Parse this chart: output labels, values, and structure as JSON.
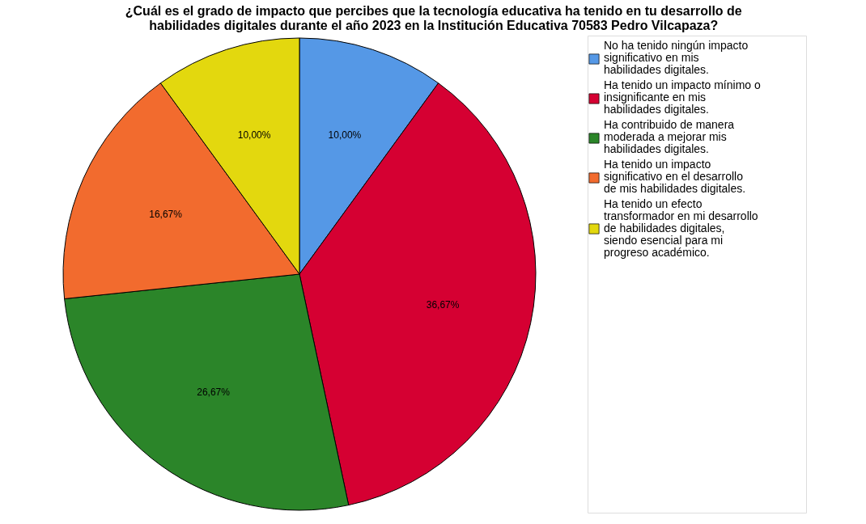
{
  "chart_data": {
    "type": "pie",
    "title": [
      "¿Cuál es el grado de impacto que percibes que la tecnología educativa ha tenido en tu desarrollo de",
      "habilidades digitales durante el año 2023 en la Institución Educativa 70583 Pedro Vilcapaza?"
    ],
    "categories": [
      "No ha tenido ningún impacto significativo en mis habilidades digitales.",
      "Ha tenido un impacto mínimo o insignificante en mis habilidades digitales.",
      "Ha contribuido de manera moderada a mejorar mis habilidades digitales.",
      "Ha tenido un impacto significativo en el desarrollo de mis habilidades digitales.",
      "Ha tenido un efecto transformador en mi desarrollo de habilidades digitales, siendo esencial para mi progreso académico."
    ],
    "values": [
      10.0,
      36.67,
      26.67,
      16.67,
      10.0
    ],
    "value_labels": [
      "10,00%",
      "36,67%",
      "26,67%",
      "16,67%",
      "10,00%"
    ],
    "colors": [
      "#5598e6",
      "#d50032",
      "#2b8529",
      "#f26b2e",
      "#e3d80e"
    ],
    "legend": "right"
  }
}
